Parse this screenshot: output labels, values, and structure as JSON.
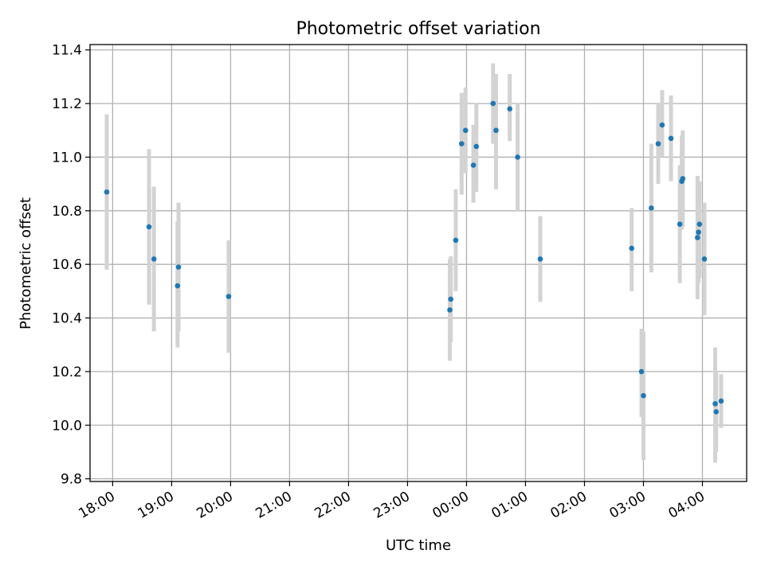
{
  "chart_data": {
    "type": "scatter",
    "title": "Photometric offset variation",
    "xlabel": "UTC time",
    "ylabel": "Photometric offset",
    "xlim": [
      "17:37",
      "04:45"
    ],
    "ylim": [
      9.79,
      11.42
    ],
    "grid": true,
    "x_ticks": [
      "18:00",
      "19:00",
      "20:00",
      "21:00",
      "22:00",
      "23:00",
      "00:00",
      "01:00",
      "02:00",
      "03:00",
      "04:00"
    ],
    "y_ticks": [
      "9.8",
      "10.0",
      "10.2",
      "10.4",
      "10.6",
      "10.8",
      "11.0",
      "11.2",
      "11.4"
    ],
    "colors": {
      "points": "#1f77b4",
      "error_bars": "#d3d3d3",
      "grid": "#b0b0b0"
    },
    "points": [
      {
        "x": "17:54",
        "y": 10.87,
        "err_low": 10.58,
        "err_high": 11.16
      },
      {
        "x": "18:37",
        "y": 10.74,
        "err_low": 10.45,
        "err_high": 11.03
      },
      {
        "x": "18:42",
        "y": 10.62,
        "err_low": 10.35,
        "err_high": 10.89
      },
      {
        "x": "19:06",
        "y": 10.52,
        "err_low": 10.29,
        "err_high": 10.76
      },
      {
        "x": "19:07",
        "y": 10.59,
        "err_low": 10.35,
        "err_high": 10.83
      },
      {
        "x": "19:58",
        "y": 10.48,
        "err_low": 10.27,
        "err_high": 10.69
      },
      {
        "x": "23:43",
        "y": 10.43,
        "err_low": 10.24,
        "err_high": 10.62
      },
      {
        "x": "23:44",
        "y": 10.47,
        "err_low": 10.31,
        "err_high": 10.63
      },
      {
        "x": "23:49",
        "y": 10.69,
        "err_low": 10.5,
        "err_high": 10.88
      },
      {
        "x": "23:55",
        "y": 11.05,
        "err_low": 10.86,
        "err_high": 11.24
      },
      {
        "x": "23:59",
        "y": 11.1,
        "err_low": 10.94,
        "err_high": 11.26
      },
      {
        "x": "00:07",
        "y": 10.97,
        "err_low": 10.83,
        "err_high": 11.12
      },
      {
        "x": "00:10",
        "y": 11.04,
        "err_low": 10.87,
        "err_high": 11.2
      },
      {
        "x": "00:27",
        "y": 11.2,
        "err_low": 11.05,
        "err_high": 11.35
      },
      {
        "x": "00:30",
        "y": 11.1,
        "err_low": 10.88,
        "err_high": 11.31
      },
      {
        "x": "00:44",
        "y": 11.18,
        "err_low": 11.06,
        "err_high": 11.31
      },
      {
        "x": "00:52",
        "y": 11.0,
        "err_low": 10.8,
        "err_high": 11.2
      },
      {
        "x": "01:15",
        "y": 10.62,
        "err_low": 10.46,
        "err_high": 10.78
      },
      {
        "x": "02:48",
        "y": 10.66,
        "err_low": 10.5,
        "err_high": 10.81
      },
      {
        "x": "02:58",
        "y": 10.2,
        "err_low": 10.03,
        "err_high": 10.36
      },
      {
        "x": "03:00",
        "y": 10.11,
        "err_low": 9.87,
        "err_high": 10.35
      },
      {
        "x": "03:08",
        "y": 10.81,
        "err_low": 10.57,
        "err_high": 11.05
      },
      {
        "x": "03:15",
        "y": 11.05,
        "err_low": 10.9,
        "err_high": 11.2
      },
      {
        "x": "03:19",
        "y": 11.12,
        "err_low": 11.0,
        "err_high": 11.25
      },
      {
        "x": "03:28",
        "y": 11.07,
        "err_low": 10.91,
        "err_high": 11.23
      },
      {
        "x": "03:37",
        "y": 10.75,
        "err_low": 10.53,
        "err_high": 10.97
      },
      {
        "x": "03:39",
        "y": 10.91,
        "err_low": 10.73,
        "err_high": 11.08
      },
      {
        "x": "03:40",
        "y": 10.92,
        "err_low": 10.74,
        "err_high": 11.1
      },
      {
        "x": "03:55",
        "y": 10.7,
        "err_low": 10.47,
        "err_high": 10.93
      },
      {
        "x": "03:56",
        "y": 10.72,
        "err_low": 10.53,
        "err_high": 10.91
      },
      {
        "x": "03:57",
        "y": 10.75,
        "err_low": 10.55,
        "err_high": 10.91
      },
      {
        "x": "04:02",
        "y": 10.62,
        "err_low": 10.41,
        "err_high": 10.83
      },
      {
        "x": "04:13",
        "y": 10.08,
        "err_low": 9.86,
        "err_high": 10.29
      },
      {
        "x": "04:14",
        "y": 10.05,
        "err_low": 9.9,
        "err_high": 10.2
      },
      {
        "x": "04:19",
        "y": 10.09,
        "err_low": 9.99,
        "err_high": 10.19
      }
    ]
  }
}
